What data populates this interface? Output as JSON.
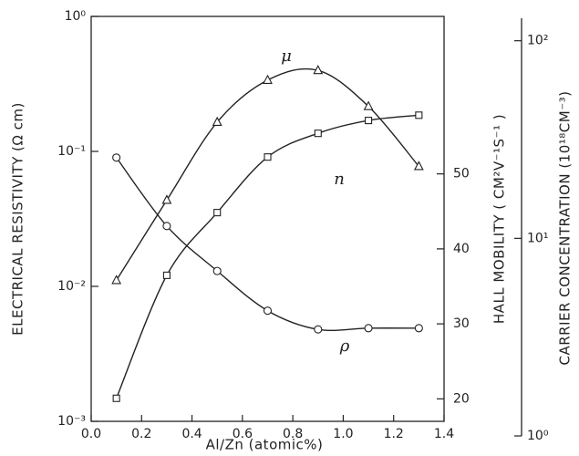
{
  "chart_data": {
    "type": "line",
    "xlabel": "Al/Zn (atomic%)",
    "ylabel": "ELECTRICAL RESISTIVITY (Ω cm)",
    "y2label": "HALL MOBILITY ( CM²V⁻¹S⁻¹ )",
    "y3label": "CARRIER CONCENTRATION (10¹⁸CM⁻³)",
    "x": [
      0.1,
      0.3,
      0.5,
      0.7,
      0.9,
      1.1,
      1.3
    ],
    "xlim": [
      0,
      1.4
    ],
    "xticks": [
      {
        "value": 0,
        "label": "0.0"
      },
      {
        "value": 0.2,
        "label": "0.2"
      },
      {
        "value": 0.4,
        "label": "0.4"
      },
      {
        "value": 0.6,
        "label": "0.6"
      },
      {
        "value": 0.8,
        "label": "0.8"
      },
      {
        "value": 1,
        "label": "1.0"
      },
      {
        "value": 1.2,
        "label": "1.2"
      },
      {
        "value": 1.4,
        "label": "1.4"
      }
    ],
    "yscale": "log",
    "ylim": [
      0.001,
      1
    ],
    "yticks": [
      {
        "value": 0.001,
        "label": "10⁻³"
      },
      {
        "value": 0.01,
        "label": "10⁻²"
      },
      {
        "value": 0.1,
        "label": "10⁻¹"
      },
      {
        "value": 1,
        "label": "10⁰"
      }
    ],
    "y2lim": [
      17,
      71
    ],
    "y2ticks": [
      20,
      30,
      40,
      50
    ],
    "y3scale": "log",
    "y3lim": [
      1,
      130
    ],
    "y3ticks": [
      {
        "value": 1,
        "label": "10⁰"
      },
      {
        "value": 10,
        "label": "10¹"
      },
      {
        "value": 100,
        "label": "10²"
      }
    ],
    "series": [
      {
        "name": "ρ",
        "marker": "circle",
        "axis": "y",
        "color": "#222",
        "values": [
          0.09,
          0.028,
          0.013,
          0.0066,
          0.0048,
          0.0049,
          0.0049
        ]
      },
      {
        "name": "μ",
        "marker": "triangle",
        "axis": "y2",
        "color": "#222",
        "values": [
          35.8,
          46.5,
          56.9,
          62.5,
          63.8,
          59,
          51
        ]
      },
      {
        "name": "n",
        "marker": "square",
        "axis": "y3",
        "color": "#222",
        "values": [
          1.55,
          6.5,
          13.5,
          25.8,
          34,
          39.5,
          42
        ]
      }
    ]
  }
}
